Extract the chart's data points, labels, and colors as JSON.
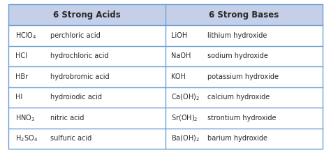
{
  "header_acids": "6 Strong Acids",
  "header_bases": "6 Strong Bases",
  "header_bg": "#c5d0e8",
  "row_bg": "#ffffff",
  "border_color": "#6b9fd4",
  "text_color": "#2a2a2a",
  "acids_formulas": [
    "HClO$_4$",
    "HCl",
    "HBr",
    "HI",
    "HNO$_3$",
    "H$_2$SO$_4$"
  ],
  "acids_names": [
    "perchloric acid",
    "hydrochloric acid",
    "hydrobromic acid",
    "hydroiodic acid",
    "nitric acid",
    "sulfuric acid"
  ],
  "bases_formulas": [
    "LiOH",
    "NaOH",
    "KOH",
    "Ca(OH)$_2$",
    "Sr(OH)$_2$",
    "Ba(OH)$_2$"
  ],
  "bases_names": [
    "lithium hydroxide",
    "sodium hydroxide",
    "potassium hydroxide",
    "calcium hydroxide",
    "strontium hydroxide",
    "barium hydroxide"
  ],
  "figsize": [
    4.74,
    2.19
  ],
  "dpi": 100,
  "n_rows": 6,
  "header_fontsize": 8.5,
  "cell_fontsize": 7.0,
  "lw": 1.0
}
